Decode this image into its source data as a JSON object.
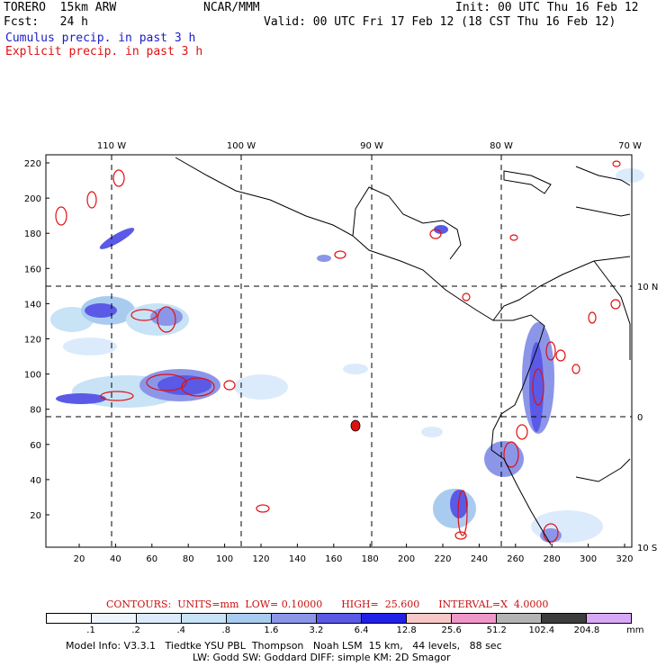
{
  "header": {
    "model": "TORERO  15km ARW",
    "org": "NCAR/MMM",
    "init": "Init: 00 UTC Thu 16 Feb 12",
    "fcst": "Fcst:   24 h",
    "valid": "Valid: 00 UTC Fri 17 Feb 12 (18 CST Thu 16 Feb 12)",
    "legend_cumulus": "Cumulus precip. in past 3 h",
    "legend_explicit": "Explicit precip. in past 3 h"
  },
  "map": {
    "lon_labels": [
      "110 W",
      "100 W",
      "90 W",
      "80 W",
      "70 W"
    ],
    "lat_labels": [
      "10 N",
      "0",
      "10 S"
    ],
    "x_ticks": [
      "20",
      "40",
      "60",
      "80",
      "100",
      "120",
      "140",
      "160",
      "180",
      "200",
      "220",
      "240",
      "260",
      "280",
      "300",
      "320"
    ],
    "y_ticks": [
      "220",
      "200",
      "180",
      "160",
      "140",
      "120",
      "100",
      "80",
      "60",
      "40",
      "20"
    ]
  },
  "contours": {
    "text": "CONTOURS:  UNITS=mm  LOW= 0.10000      HIGH=  25.600      INTERVAL=X  4.0000"
  },
  "colorbar": {
    "colors": [
      "#ffffff",
      "#eef5ff",
      "#dcebfb",
      "#c8e2f6",
      "#aacbf0",
      "#8c96e8",
      "#5a5ae6",
      "#2020e6",
      "#f8c8c8",
      "#f096c8",
      "#b4b4b4",
      "#3c3c3c",
      "#d8a8f8"
    ],
    "labels": [
      ".1",
      ".2",
      ".4",
      ".8",
      "1.6",
      "3.2",
      "6.4",
      "12.8",
      "25.6",
      "51.2",
      "102.4",
      "204.8"
    ],
    "unit": "mm"
  },
  "footer": {
    "line1": "Model Info: V3.3.1   Tiedtke YSU PBL  Thompson   Noah LSM  15 km,   44 levels,   88 sec",
    "line2": "LW: Godd SW: Goddard DIFF: simple KM: 2D Smagor"
  }
}
